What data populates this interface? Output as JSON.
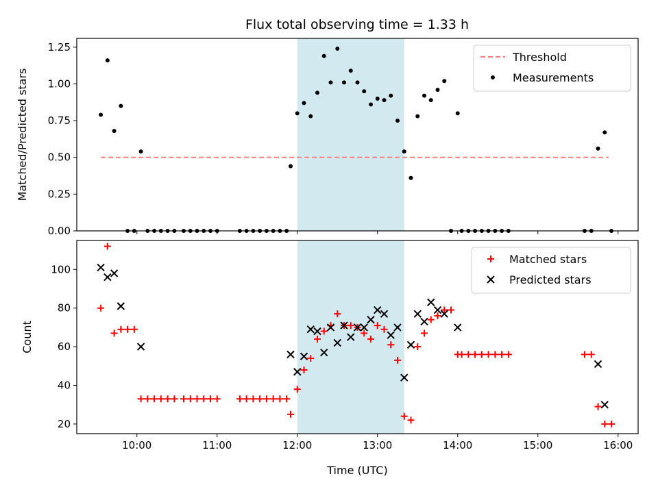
{
  "chart_data": [
    {
      "type": "scatter",
      "title": "Flux total observing time = 1.33 h",
      "xlabel": "",
      "ylabel": "Matched/Predicted stars",
      "xlim": [
        "09:15",
        "16:15"
      ],
      "ylim": [
        0,
        1.31
      ],
      "yticks": [
        0.0,
        0.25,
        0.5,
        0.75,
        1.0,
        1.25
      ],
      "ytick_labels": [
        "0.00",
        "0.25",
        "0.50",
        "0.75",
        "1.00",
        "1.25"
      ],
      "xticks": [
        "10:00",
        "11:00",
        "12:00",
        "13:00",
        "14:00",
        "15:00",
        "16:00"
      ],
      "tick_labels_visible_x": false,
      "grid": false,
      "legend": "top-right",
      "highlight": {
        "start": "12:00",
        "end": "13:20",
        "color": "#d3e9f0"
      },
      "threshold": {
        "name": "Threshold",
        "value": 0.5,
        "start": "09:33",
        "end": "15:53",
        "color": "#ff7f7f"
      },
      "series": [
        {
          "name": "Measurements",
          "color": "#000000",
          "points": [
            [
              "09:33",
              0.79
            ],
            [
              "09:38",
              1.16
            ],
            [
              "09:43",
              0.68
            ],
            [
              "09:48",
              0.85
            ],
            [
              "09:53",
              0.0
            ],
            [
              "09:58",
              0.0
            ],
            [
              "10:03",
              0.54
            ],
            [
              "10:08",
              0.0
            ],
            [
              "10:13",
              0.0
            ],
            [
              "10:18",
              0.0
            ],
            [
              "10:23",
              0.0
            ],
            [
              "10:28",
              0.0
            ],
            [
              "10:35",
              0.0
            ],
            [
              "10:40",
              0.0
            ],
            [
              "10:45",
              0.0
            ],
            [
              "10:50",
              0.0
            ],
            [
              "10:55",
              0.0
            ],
            [
              "11:00",
              0.0
            ],
            [
              "11:17",
              0.0
            ],
            [
              "11:22",
              0.0
            ],
            [
              "11:27",
              0.0
            ],
            [
              "11:32",
              0.0
            ],
            [
              "11:37",
              0.0
            ],
            [
              "11:42",
              0.0
            ],
            [
              "11:47",
              0.0
            ],
            [
              "11:52",
              0.0
            ],
            [
              "11:55",
              0.44
            ],
            [
              "12:00",
              0.8
            ],
            [
              "12:05",
              0.87
            ],
            [
              "12:10",
              0.78
            ],
            [
              "12:15",
              0.94
            ],
            [
              "12:20",
              1.19
            ],
            [
              "12:25",
              1.01
            ],
            [
              "12:30",
              1.24
            ],
            [
              "12:35",
              1.01
            ],
            [
              "12:40",
              1.09
            ],
            [
              "12:45",
              1.01
            ],
            [
              "12:50",
              0.95
            ],
            [
              "12:55",
              0.86
            ],
            [
              "13:00",
              0.9
            ],
            [
              "13:05",
              0.89
            ],
            [
              "13:10",
              0.92
            ],
            [
              "13:15",
              0.75
            ],
            [
              "13:20",
              0.54
            ],
            [
              "13:25",
              0.36
            ],
            [
              "13:30",
              0.78
            ],
            [
              "13:35",
              0.92
            ],
            [
              "13:40",
              0.89
            ],
            [
              "13:45",
              0.96
            ],
            [
              "13:50",
              1.02
            ],
            [
              "13:55",
              0.0
            ],
            [
              "14:00",
              0.8
            ],
            [
              "14:03",
              0.0
            ],
            [
              "14:08",
              0.0
            ],
            [
              "14:13",
              0.0
            ],
            [
              "14:18",
              0.0
            ],
            [
              "14:23",
              0.0
            ],
            [
              "14:28",
              0.0
            ],
            [
              "14:33",
              0.0
            ],
            [
              "14:38",
              0.0
            ],
            [
              "15:35",
              0.0
            ],
            [
              "15:40",
              0.0
            ],
            [
              "15:45",
              0.56
            ],
            [
              "15:50",
              0.67
            ],
            [
              "15:55",
              0.0
            ]
          ]
        }
      ]
    },
    {
      "type": "scatter",
      "title": "",
      "xlabel": "Time (UTC)",
      "ylabel": "Count",
      "xlim": [
        "09:15",
        "16:15"
      ],
      "ylim": [
        15,
        115
      ],
      "yticks": [
        20,
        40,
        60,
        80,
        100
      ],
      "ytick_labels": [
        "20",
        "40",
        "60",
        "80",
        "100"
      ],
      "xticks": [
        "10:00",
        "11:00",
        "12:00",
        "13:00",
        "14:00",
        "15:00",
        "16:00"
      ],
      "xtick_labels": [
        "10:00",
        "11:00",
        "12:00",
        "13:00",
        "14:00",
        "15:00",
        "16:00"
      ],
      "grid": false,
      "legend": "top-right",
      "highlight": {
        "start": "12:00",
        "end": "13:20",
        "color": "#d3e9f0"
      },
      "series": [
        {
          "name": "Matched stars",
          "marker": "plus",
          "color": "#ff0000",
          "points": [
            [
              "09:33",
              80
            ],
            [
              "09:38",
              112
            ],
            [
              "09:43",
              67
            ],
            [
              "09:48",
              69
            ],
            [
              "09:53",
              69
            ],
            [
              "09:58",
              69
            ],
            [
              "10:03",
              33
            ],
            [
              "10:08",
              33
            ],
            [
              "10:13",
              33
            ],
            [
              "10:18",
              33
            ],
            [
              "10:23",
              33
            ],
            [
              "10:28",
              33
            ],
            [
              "10:35",
              33
            ],
            [
              "10:40",
              33
            ],
            [
              "10:45",
              33
            ],
            [
              "10:50",
              33
            ],
            [
              "10:55",
              33
            ],
            [
              "11:00",
              33
            ],
            [
              "11:17",
              33
            ],
            [
              "11:22",
              33
            ],
            [
              "11:27",
              33
            ],
            [
              "11:32",
              33
            ],
            [
              "11:37",
              33
            ],
            [
              "11:42",
              33
            ],
            [
              "11:47",
              33
            ],
            [
              "11:52",
              33
            ],
            [
              "11:55",
              25
            ],
            [
              "12:00",
              38
            ],
            [
              "12:05",
              48
            ],
            [
              "12:10",
              54
            ],
            [
              "12:15",
              64
            ],
            [
              "12:20",
              68
            ],
            [
              "12:25",
              71
            ],
            [
              "12:30",
              77
            ],
            [
              "12:35",
              71
            ],
            [
              "12:40",
              71
            ],
            [
              "12:45",
              70
            ],
            [
              "12:50",
              67
            ],
            [
              "12:55",
              64
            ],
            [
              "13:00",
              71
            ],
            [
              "13:05",
              69
            ],
            [
              "13:10",
              61
            ],
            [
              "13:15",
              53
            ],
            [
              "13:20",
              24
            ],
            [
              "13:25",
              22
            ],
            [
              "13:30",
              60
            ],
            [
              "13:35",
              67
            ],
            [
              "13:40",
              74
            ],
            [
              "13:45",
              76
            ],
            [
              "13:50",
              79
            ],
            [
              "13:55",
              79
            ],
            [
              "14:00",
              56
            ],
            [
              "14:03",
              56
            ],
            [
              "14:08",
              56
            ],
            [
              "14:13",
              56
            ],
            [
              "14:18",
              56
            ],
            [
              "14:23",
              56
            ],
            [
              "14:28",
              56
            ],
            [
              "14:33",
              56
            ],
            [
              "14:38",
              56
            ],
            [
              "15:35",
              56
            ],
            [
              "15:40",
              56
            ],
            [
              "15:45",
              29
            ],
            [
              "15:50",
              20
            ],
            [
              "15:55",
              20
            ]
          ]
        },
        {
          "name": "Predicted stars",
          "marker": "x",
          "color": "#000000",
          "points": [
            [
              "09:33",
              101
            ],
            [
              "09:38",
              96
            ],
            [
              "09:43",
              98
            ],
            [
              "09:48",
              81
            ],
            [
              "10:03",
              60
            ],
            [
              "11:55",
              56
            ],
            [
              "12:00",
              47
            ],
            [
              "12:05",
              55
            ],
            [
              "12:10",
              69
            ],
            [
              "12:15",
              68
            ],
            [
              "12:20",
              57
            ],
            [
              "12:25",
              70
            ],
            [
              "12:30",
              62
            ],
            [
              "12:35",
              71
            ],
            [
              "12:40",
              65
            ],
            [
              "12:45",
              70
            ],
            [
              "12:50",
              70
            ],
            [
              "12:55",
              74
            ],
            [
              "13:00",
              79
            ],
            [
              "13:05",
              77
            ],
            [
              "13:10",
              66
            ],
            [
              "13:15",
              70
            ],
            [
              "13:20",
              44
            ],
            [
              "13:25",
              61
            ],
            [
              "13:30",
              77
            ],
            [
              "13:35",
              73
            ],
            [
              "13:40",
              83
            ],
            [
              "13:45",
              79
            ],
            [
              "13:50",
              77
            ],
            [
              "14:00",
              70
            ],
            [
              "15:45",
              51
            ],
            [
              "15:50",
              30
            ]
          ]
        }
      ]
    }
  ]
}
